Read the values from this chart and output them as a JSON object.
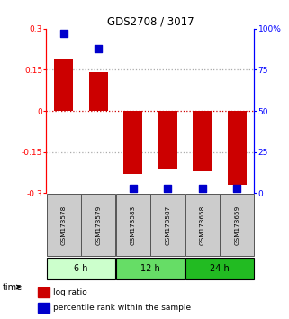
{
  "title": "GDS2708 / 3017",
  "samples": [
    "GSM173578",
    "GSM173579",
    "GSM173583",
    "GSM173587",
    "GSM173658",
    "GSM173659"
  ],
  "log_ratios": [
    0.19,
    0.14,
    -0.23,
    -0.21,
    -0.22,
    -0.27
  ],
  "percentile_ranks": [
    97,
    88,
    3,
    3,
    3,
    3
  ],
  "bar_color": "#cc0000",
  "dot_color": "#0000cc",
  "ylim": [
    -0.3,
    0.3
  ],
  "y2lim": [
    0,
    100
  ],
  "yticks": [
    -0.3,
    -0.15,
    0,
    0.15,
    0.3
  ],
  "ytick_labels": [
    "-0.3",
    "-0.15",
    "0",
    "0.15",
    "0.3"
  ],
  "y2ticks": [
    0,
    25,
    50,
    75,
    100
  ],
  "y2tick_labels": [
    "0",
    "25",
    "50",
    "75",
    "100%"
  ],
  "hline_color_zero": "#cc0000",
  "hline_color_grid": "#aaaaaa",
  "bar_width": 0.55,
  "dot_size": 28,
  "sample_box_color": "#cccccc",
  "sample_box_edge": "#555555",
  "time_group_colors": [
    "#ccffcc",
    "#66dd66",
    "#22bb22"
  ],
  "time_groups": [
    {
      "label": "6 h",
      "start": 0,
      "end": 1
    },
    {
      "label": "12 h",
      "start": 2,
      "end": 3
    },
    {
      "label": "24 h",
      "start": 4,
      "end": 5
    }
  ]
}
